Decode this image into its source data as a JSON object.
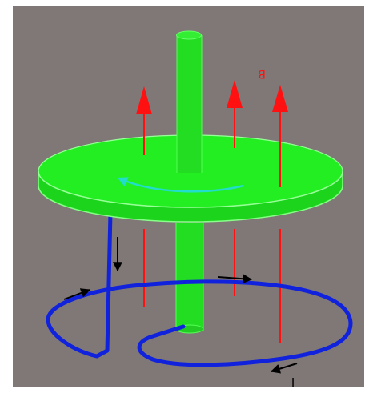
{
  "labels": {
    "field": "B",
    "current": "I"
  },
  "colors": {
    "background": "#7f7877",
    "frame": "#ffffff",
    "disk_fill": "#22ee22",
    "disk_edge": "#88ff88",
    "axle": "#22dd22",
    "field_arrows": "#ff1111",
    "rotation_arrow": "#22ddcc",
    "wire": "#1122dd",
    "current_arrows": "#000000"
  },
  "icons": [
    "field-arrow",
    "rotation-arrow",
    "current-arrow"
  ]
}
